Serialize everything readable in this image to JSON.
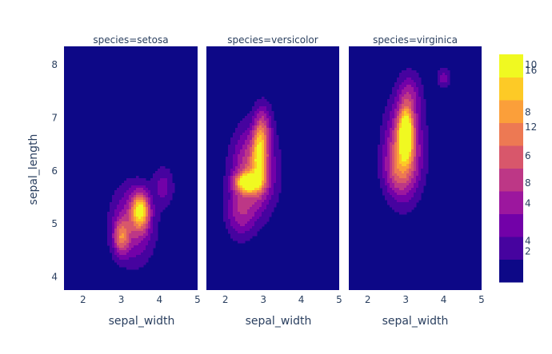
{
  "chart_data": {
    "type": "contour",
    "x_label": "sepal_width",
    "y_label": "sepal_length",
    "x_range": [
      1.5,
      5.0
    ],
    "y_range": [
      3.75,
      8.35
    ],
    "x_ticks": [
      "2",
      "3",
      "4",
      "5"
    ],
    "y_ticks": [
      "4",
      "5",
      "6",
      "7",
      "8"
    ],
    "background_color": "#0d0887",
    "panels": [
      {
        "title": "species=setosa",
        "peaks": [
          {
            "x": 3.5,
            "y": 5.25,
            "sx": 0.15,
            "sy": 0.22,
            "level": 7.0
          },
          {
            "x": 3.0,
            "y": 4.75,
            "sx": 0.13,
            "sy": 0.2,
            "level": 4.2
          },
          {
            "x": 3.3,
            "y": 5.0,
            "sx": 0.35,
            "sy": 0.45,
            "level": 3.0
          },
          {
            "x": 4.1,
            "y": 5.7,
            "sx": 0.18,
            "sy": 0.25,
            "level": 1.5
          }
        ]
      },
      {
        "title": "species=versicolor",
        "peaks": [
          {
            "x": 2.6,
            "y": 5.78,
            "sx": 0.22,
            "sy": 0.12,
            "level": 8.5
          },
          {
            "x": 2.9,
            "y": 6.3,
            "sx": 0.12,
            "sy": 0.35,
            "level": 5.5
          },
          {
            "x": 2.75,
            "y": 6.0,
            "sx": 0.35,
            "sy": 0.5,
            "level": 4.5
          },
          {
            "x": 2.4,
            "y": 5.2,
            "sx": 0.25,
            "sy": 0.3,
            "level": 2.2
          },
          {
            "x": 3.0,
            "y": 6.8,
            "sx": 0.15,
            "sy": 0.3,
            "level": 2.5
          }
        ]
      },
      {
        "title": "species=virginica",
        "peaks": [
          {
            "x": 3.0,
            "y": 6.7,
            "sx": 0.12,
            "sy": 0.3,
            "level": 9.0
          },
          {
            "x": 2.95,
            "y": 6.4,
            "sx": 0.3,
            "sy": 0.55,
            "level": 5.0
          },
          {
            "x": 2.8,
            "y": 6.0,
            "sx": 0.25,
            "sy": 0.3,
            "level": 2.0
          },
          {
            "x": 3.1,
            "y": 7.4,
            "sx": 0.2,
            "sy": 0.3,
            "level": 2.0
          },
          {
            "x": 4.0,
            "y": 7.75,
            "sx": 0.12,
            "sy": 0.12,
            "level": 1.6
          }
        ]
      }
    ],
    "colorscale": [
      "#0d0887",
      "#46039f",
      "#7201a8",
      "#9c179e",
      "#bd3786",
      "#d8576b",
      "#ed7953",
      "#fb9f3a",
      "#fdca26",
      "#f0f921"
    ],
    "colorbar_labels": [
      {
        "label": "10",
        "pos": 0.955
      },
      {
        "label": "16",
        "pos": 0.93
      },
      {
        "label": "8",
        "pos": 0.745
      },
      {
        "label": "12",
        "pos": 0.68
      },
      {
        "label": "6",
        "pos": 0.555
      },
      {
        "label": "8",
        "pos": 0.435
      },
      {
        "label": "4",
        "pos": 0.345
      },
      {
        "label": "4",
        "pos": 0.18
      },
      {
        "label": "2",
        "pos": 0.135
      }
    ]
  }
}
